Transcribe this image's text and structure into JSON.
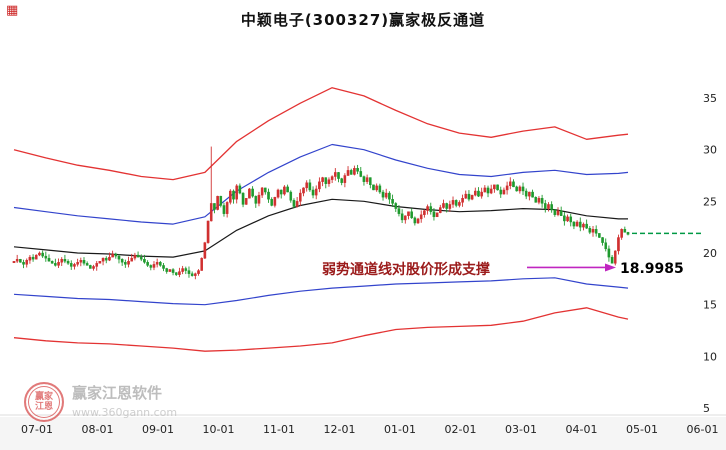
{
  "title": "中颖电子(300327)赢家极反通道",
  "annotation": {
    "text": "弱势通道线对股价形成支撑",
    "price_label": "18.9985",
    "text_color": "#9b1b1b",
    "arrow_color": "#c026c0"
  },
  "watermark": {
    "brand": "赢家江恩软件",
    "url": "www.360gann.com",
    "logo_line1": "赢家",
    "logo_line2": "江恩"
  },
  "colors": {
    "up_candle": "#d03030",
    "down_candle": "#1f9a2e",
    "upper_channel": "#e33333",
    "inner_channel": "#3344cc",
    "mid_channel": "#1a1a1a",
    "support_line": "#009944",
    "axis_text": "#222222"
  },
  "chart_data": {
    "type": "candlestick",
    "title": "中颖电子(300327)赢家极反通道",
    "x_ticks": [
      "07-01",
      "08-01",
      "09-01",
      "10-01",
      "11-01",
      "12-01",
      "01-01",
      "02-01",
      "03-01",
      "04-01",
      "05-01",
      "06-01"
    ],
    "y_ticks": [
      35,
      30,
      25,
      20,
      15,
      10,
      5
    ],
    "ylim": [
      5,
      37
    ],
    "closes": [
      19.2,
      19.4,
      19.1,
      18.9,
      19.3,
      19.6,
      19.4,
      19.8,
      20.0,
      19.7,
      19.5,
      19.2,
      19.0,
      18.8,
      19.1,
      19.4,
      19.2,
      19.0,
      18.7,
      18.9,
      19.1,
      19.3,
      19.0,
      18.8,
      18.5,
      18.7,
      19.0,
      19.2,
      19.5,
      19.3,
      19.6,
      19.9,
      19.7,
      19.4,
      19.1,
      18.9,
      19.2,
      19.5,
      19.8,
      19.6,
      19.4,
      19.1,
      18.8,
      18.6,
      18.9,
      19.1,
      18.8,
      18.5,
      18.2,
      18.4,
      18.1,
      17.9,
      18.2,
      18.5,
      18.3,
      18.0,
      17.8,
      18.0,
      18.3,
      19.5,
      21.0,
      23.1,
      24.8,
      24.2,
      25.5,
      24.6,
      23.8,
      24.9,
      26.0,
      25.2,
      26.5,
      25.8,
      24.7,
      25.3,
      26.2,
      25.5,
      24.8,
      25.6,
      26.3,
      25.9,
      25.2,
      24.6,
      25.4,
      26.1,
      25.7,
      26.4,
      25.9,
      25.1,
      24.5,
      25.0,
      25.8,
      26.3,
      26.8,
      26.1,
      25.6,
      26.2,
      26.9,
      27.3,
      26.7,
      27.1,
      27.4,
      27.8,
      27.2,
      26.8,
      27.5,
      28.0,
      27.6,
      28.2,
      27.9,
      27.4,
      26.9,
      27.3,
      26.6,
      26.1,
      26.5,
      25.9,
      25.4,
      25.8,
      25.2,
      24.8,
      24.3,
      23.8,
      23.2,
      23.6,
      24.0,
      23.4,
      22.9,
      23.3,
      23.7,
      24.1,
      24.5,
      24.0,
      23.5,
      23.9,
      24.4,
      24.8,
      24.3,
      24.7,
      25.1,
      24.6,
      24.9,
      25.3,
      25.7,
      25.2,
      25.6,
      26.0,
      25.5,
      25.9,
      26.3,
      25.8,
      26.2,
      26.6,
      26.1,
      25.7,
      26.1,
      26.5,
      26.9,
      26.4,
      26.0,
      26.4,
      26.0,
      25.5,
      25.9,
      25.4,
      24.9,
      25.3,
      24.8,
      24.3,
      24.7,
      24.2,
      23.7,
      24.1,
      23.6,
      23.1,
      23.5,
      23.0,
      22.6,
      23.0,
      22.5,
      22.8,
      22.4,
      22.0,
      22.3,
      21.9,
      21.5,
      21.0,
      20.4,
      19.6,
      19.0,
      20.2,
      21.5,
      22.3,
      22.0,
      21.8
    ],
    "overrides": {
      "high": {
        "62": 30.3
      },
      "low": {
        "188": 18.9985
      }
    },
    "channel": {
      "sample_indices": [
        0,
        10,
        20,
        30,
        40,
        50,
        60,
        70,
        80,
        90,
        100,
        110,
        120,
        130,
        140,
        150,
        160,
        170,
        180,
        190,
        193
      ],
      "upper_red": [
        30.0,
        29.2,
        28.5,
        28.0,
        27.4,
        27.1,
        27.8,
        30.8,
        32.8,
        34.5,
        36.0,
        35.2,
        33.8,
        32.5,
        31.6,
        31.2,
        31.8,
        32.2,
        31.0,
        31.4,
        31.5
      ],
      "upper_blue": [
        24.4,
        24.0,
        23.6,
        23.3,
        23.0,
        22.8,
        23.5,
        26.0,
        27.8,
        29.3,
        30.5,
        30.0,
        29.0,
        28.2,
        27.6,
        27.4,
        27.8,
        28.0,
        27.6,
        27.7,
        27.8
      ],
      "mid_black": [
        20.6,
        20.3,
        20.0,
        19.9,
        19.7,
        19.6,
        20.2,
        22.2,
        23.6,
        24.6,
        25.2,
        25.0,
        24.5,
        24.2,
        24.0,
        24.1,
        24.3,
        24.2,
        23.6,
        23.3,
        23.3
      ],
      "lower_blue": [
        16.0,
        15.8,
        15.6,
        15.5,
        15.3,
        15.1,
        15.0,
        15.4,
        15.9,
        16.3,
        16.6,
        16.8,
        17.0,
        17.1,
        17.2,
        17.3,
        17.5,
        17.6,
        17.0,
        16.7,
        16.6
      ],
      "lower_red": [
        11.8,
        11.5,
        11.3,
        11.2,
        11.0,
        10.8,
        10.5,
        10.6,
        10.8,
        11.0,
        11.3,
        12.0,
        12.6,
        12.8,
        12.9,
        13.0,
        13.4,
        14.2,
        14.7,
        13.8,
        13.6
      ]
    },
    "support_line": {
      "value": 21.9
    },
    "legend_position": "none",
    "grid": false
  }
}
